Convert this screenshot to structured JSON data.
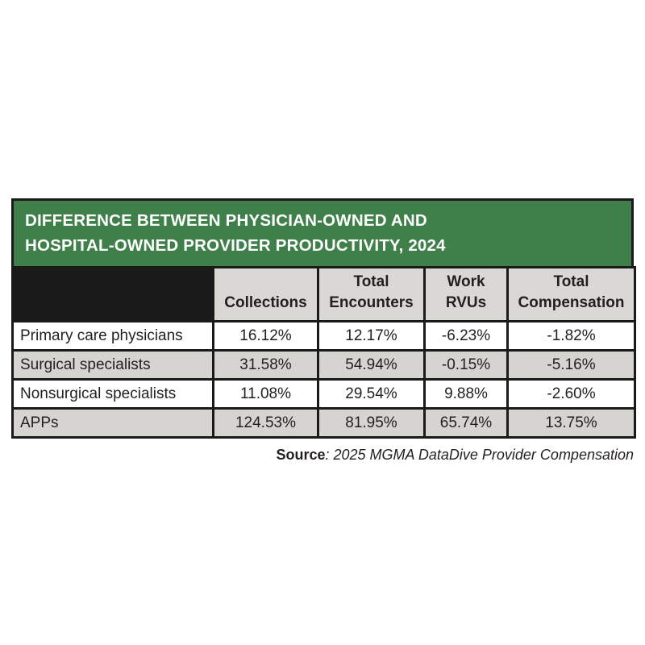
{
  "colors": {
    "title_bg": "#3e7f4a",
    "title_text": "#ffffff",
    "header_bg": "#dad8d4",
    "corner_bg": "#1a1a1a",
    "row_alt_bg": "#d5d4d0",
    "border": "#1a1a1a",
    "text": "#231f20"
  },
  "title": {
    "line1": "DIFFERENCE BETWEEN PHYSICIAN-OWNED AND",
    "line2": "HOSPITAL-OWNED PROVIDER PRODUCTIVITY, 2024"
  },
  "source": {
    "label": "Source",
    "separator": ": ",
    "text": "2025 MGMA DataDive Provider Compensation"
  },
  "table": {
    "columns": [
      {
        "line1": "",
        "line2": "Collections"
      },
      {
        "line1": "Total",
        "line2": "Encounters"
      },
      {
        "line1": "Work",
        "line2": "RVUs"
      },
      {
        "line1": "Total",
        "line2": "Compensation"
      }
    ],
    "rows": [
      {
        "label": "Primary care physicians",
        "values": [
          "16.12%",
          "12.17%",
          "-6.23%",
          "-1.82%"
        ]
      },
      {
        "label": "Surgical specialists",
        "values": [
          "31.58%",
          "54.94%",
          "-0.15%",
          "-5.16%"
        ]
      },
      {
        "label": "Nonsurgical specialists",
        "values": [
          "11.08%",
          "29.54%",
          "9.88%",
          "-2.60%"
        ]
      },
      {
        "label": "APPs",
        "values": [
          "124.53%",
          "81.95%",
          "65.74%",
          "13.75%"
        ]
      }
    ]
  },
  "chart_data": {
    "type": "table",
    "title": "DIFFERENCE BETWEEN PHYSICIAN-OWNED AND HOSPITAL-OWNED PROVIDER PRODUCTIVITY, 2024",
    "columns": [
      "Collections",
      "Total Encounters",
      "Work RVUs",
      "Total Compensation"
    ],
    "categories": [
      "Primary care physicians",
      "Surgical specialists",
      "Nonsurgical specialists",
      "APPs"
    ],
    "series": [
      {
        "name": "Collections",
        "values": [
          16.12,
          31.58,
          11.08,
          124.53
        ]
      },
      {
        "name": "Total Encounters",
        "values": [
          12.17,
          54.94,
          29.54,
          81.95
        ]
      },
      {
        "name": "Work RVUs",
        "values": [
          -6.23,
          -0.15,
          9.88,
          65.74
        ]
      },
      {
        "name": "Total Compensation",
        "values": [
          -1.82,
          -5.16,
          -2.6,
          13.75
        ]
      }
    ],
    "value_unit": "%",
    "source": "Source: 2025 MGMA DataDive Provider Compensation"
  }
}
